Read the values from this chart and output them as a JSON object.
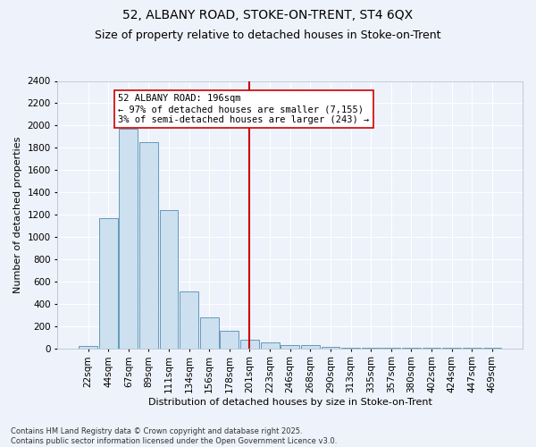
{
  "title1": "52, ALBANY ROAD, STOKE-ON-TRENT, ST4 6QX",
  "title2": "Size of property relative to detached houses in Stoke-on-Trent",
  "xlabel": "Distribution of detached houses by size in Stoke-on-Trent",
  "ylabel": "Number of detached properties",
  "categories": [
    "22sqm",
    "44sqm",
    "67sqm",
    "89sqm",
    "111sqm",
    "134sqm",
    "156sqm",
    "178sqm",
    "201sqm",
    "223sqm",
    "246sqm",
    "268sqm",
    "290sqm",
    "313sqm",
    "335sqm",
    "357sqm",
    "380sqm",
    "402sqm",
    "424sqm",
    "447sqm",
    "469sqm"
  ],
  "values": [
    25,
    1170,
    1970,
    1850,
    1240,
    510,
    275,
    155,
    80,
    50,
    30,
    30,
    15,
    8,
    5,
    4,
    3,
    3,
    2,
    2,
    2
  ],
  "bar_color": "#cce0f0",
  "bar_edge_color": "#6699bb",
  "vline_x": 8,
  "vline_color": "#cc0000",
  "annotation_text": "52 ALBANY ROAD: 196sqm\n← 97% of detached houses are smaller (7,155)\n3% of semi-detached houses are larger (243) →",
  "annotation_box_color": "#ffffff",
  "annotation_box_edge": "#cc0000",
  "ylim": [
    0,
    2400
  ],
  "yticks": [
    0,
    200,
    400,
    600,
    800,
    1000,
    1200,
    1400,
    1600,
    1800,
    2000,
    2200,
    2400
  ],
  "bg_color": "#eef2fa",
  "grid_color": "#ffffff",
  "footnote": "Contains HM Land Registry data © Crown copyright and database right 2025.\nContains public sector information licensed under the Open Government Licence v3.0.",
  "title_fontsize": 10,
  "subtitle_fontsize": 9,
  "axis_label_fontsize": 8,
  "tick_fontsize": 7.5,
  "annotation_fontsize": 7.5,
  "footnote_fontsize": 6
}
